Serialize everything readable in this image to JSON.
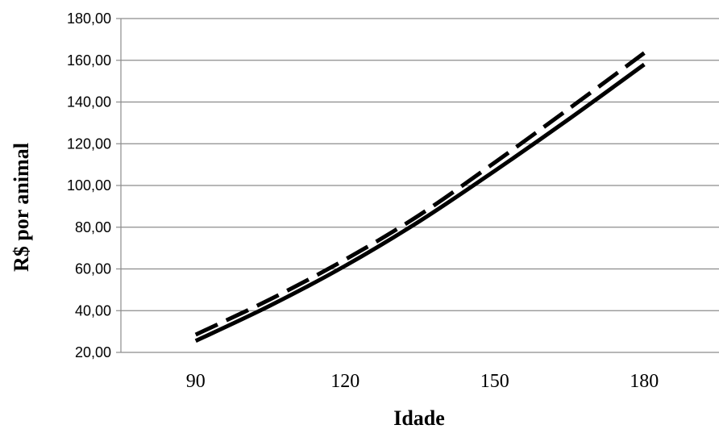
{
  "chart_data": {
    "type": "line",
    "title": "",
    "xlabel": "Idade",
    "ylabel": "R$ por animal",
    "categories": [
      "90",
      "120",
      "150",
      "180"
    ],
    "x": [
      90,
      120,
      150,
      180
    ],
    "xlim": [
      75,
      195
    ],
    "ylim": [
      20,
      180
    ],
    "ytick_values": [
      20,
      40,
      60,
      80,
      100,
      120,
      140,
      160,
      180
    ],
    "ytick_labels": [
      "20,00",
      "40,00",
      "60,00",
      "80,00",
      "100,00",
      "120,00",
      "140,00",
      "160,00",
      "180,00"
    ],
    "grid": true,
    "legend": "none",
    "series": [
      {
        "style": "solid",
        "color": "#000000",
        "x": [
          90,
          105,
          120,
          135,
          150,
          165,
          180
        ],
        "values": [
          25.5,
          42.5,
          61.5,
          83.0,
          107.0,
          132.0,
          158.0
        ]
      },
      {
        "style": "dashed",
        "color": "#000000",
        "x": [
          90,
          105,
          120,
          135,
          150,
          165,
          180
        ],
        "values": [
          28.5,
          45.5,
          64.5,
          86.0,
          111.0,
          137.0,
          163.5
        ]
      }
    ]
  }
}
